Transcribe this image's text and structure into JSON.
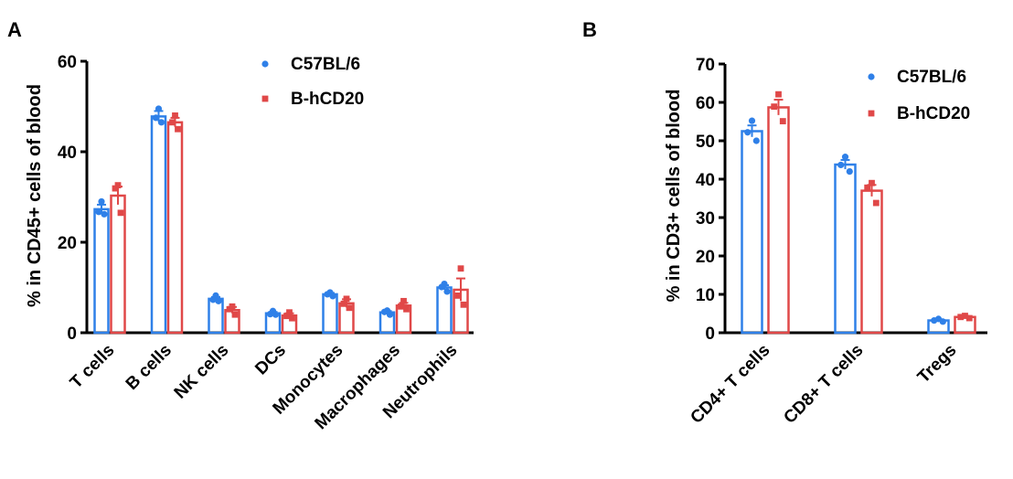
{
  "chart_data": [
    {
      "panel": "A",
      "type": "bar",
      "ylabel": "% in CD45+ cells of blood",
      "ylim": [
        0,
        60
      ],
      "yticks": [
        "0",
        "20",
        "40",
        "60"
      ],
      "categories": [
        "T cells",
        "B cells",
        "NK cells",
        "DCs",
        "Monocytes",
        "Macrophages",
        "Neutrophils"
      ],
      "legend_position": "top-right",
      "series": [
        {
          "name": "C57BL/6",
          "color": "#2f80e8",
          "marker": "circle",
          "values": [
            27.3,
            47.8,
            7.5,
            4.3,
            8.5,
            4.5,
            10.0
          ],
          "errors": [
            1.0,
            1.2,
            0.4,
            0.3,
            0.3,
            0.3,
            0.5
          ],
          "points": [
            [
              29.0,
              26.7,
              26.2
            ],
            [
              49.5,
              47.5,
              46.5
            ],
            [
              8.2,
              7.3,
              7.0
            ],
            [
              4.8,
              4.1,
              4.0
            ],
            [
              8.9,
              8.5,
              8.1
            ],
            [
              4.9,
              4.6,
              4.0
            ],
            [
              10.8,
              10.1,
              9.1
            ]
          ]
        },
        {
          "name": "B-hCD20",
          "color": "#e04848",
          "marker": "square",
          "values": [
            30.3,
            46.5,
            5.0,
            3.8,
            6.5,
            6.0,
            9.5
          ],
          "errors": [
            2.0,
            1.0,
            0.7,
            0.5,
            0.9,
            0.6,
            2.5
          ],
          "points": [
            [
              32.6,
              31.9,
              26.5
            ],
            [
              48.0,
              46.5,
              45.0
            ],
            [
              5.8,
              5.2,
              4.0
            ],
            [
              4.5,
              3.7,
              3.2
            ],
            [
              7.5,
              6.4,
              5.5
            ],
            [
              7.0,
              5.8,
              5.2
            ],
            [
              14.2,
              8.2,
              6.2
            ]
          ]
        }
      ]
    },
    {
      "panel": "B",
      "type": "bar",
      "ylabel": "% in CD3+ cells of blood",
      "ylim": [
        0,
        70
      ],
      "yticks": [
        "0",
        "10",
        "20",
        "30",
        "40",
        "50",
        "60",
        "70"
      ],
      "categories": [
        "CD4+ T cells",
        "CD8+ T cells",
        "Tregs"
      ],
      "legend_position": "top-right",
      "series": [
        {
          "name": "C57BL/6",
          "color": "#2f80e8",
          "marker": "circle",
          "values": [
            52.5,
            43.8,
            3.2
          ],
          "errors": [
            1.5,
            1.2,
            0.3
          ],
          "points": [
            [
              55.2,
              52.2,
              50.0
            ],
            [
              45.8,
              43.7,
              42.0
            ],
            [
              3.6,
              3.2,
              2.9
            ]
          ]
        },
        {
          "name": "B-hCD20",
          "color": "#e04848",
          "marker": "square",
          "values": [
            58.7,
            37.0,
            4.1
          ],
          "errors": [
            2.0,
            1.5,
            0.3
          ],
          "points": [
            [
              62.1,
              58.9,
              55.1
            ],
            [
              39.0,
              37.8,
              33.8
            ],
            [
              4.4,
              4.1,
              3.8
            ]
          ]
        }
      ]
    }
  ]
}
